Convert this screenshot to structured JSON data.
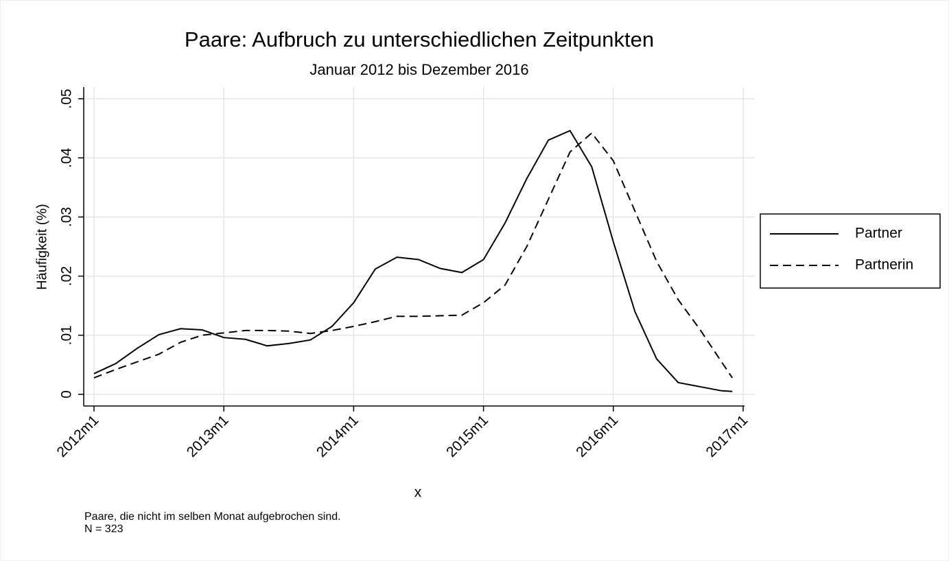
{
  "chart_data": {
    "type": "line",
    "title": "Paare: Aufbruch zu unterschiedlichen Zeitpunkten",
    "subtitle": "Januar 2012 bis Dezember 2016",
    "x_label": "x",
    "y_label": "Häufigkeit (%)",
    "notes": [
      "Paare, die nicht im selben Monat aufgebrochen sind.",
      "N = 323"
    ],
    "x": [
      624,
      626,
      628,
      630,
      632,
      634,
      636,
      638,
      640,
      642,
      644,
      646,
      648,
      650,
      652,
      654,
      656,
      658,
      660,
      662,
      664,
      666,
      668,
      670,
      672,
      674,
      676,
      678,
      680,
      682,
      683
    ],
    "series": [
      {
        "name": "Partner",
        "color": "#000000",
        "line_style": "solid",
        "values": [
          0.0035,
          0.0052,
          0.0078,
          0.0101,
          0.0111,
          0.0109,
          0.0096,
          0.0093,
          0.0082,
          0.0086,
          0.0092,
          0.0115,
          0.0155,
          0.0212,
          0.0232,
          0.0228,
          0.0213,
          0.0206,
          0.0228,
          0.029,
          0.0365,
          0.043,
          0.0446,
          0.0385,
          0.0258,
          0.014,
          0.006,
          0.002,
          0.0013,
          0.0006,
          0.0005
        ]
      },
      {
        "name": "Partnerin",
        "color": "#000000",
        "line_style": "dashed",
        "values": [
          0.0028,
          0.0042,
          0.0055,
          0.0068,
          0.0088,
          0.01,
          0.0104,
          0.0108,
          0.0108,
          0.0107,
          0.0103,
          0.0108,
          0.0115,
          0.0123,
          0.0132,
          0.0132,
          0.0133,
          0.0134,
          0.0155,
          0.0185,
          0.025,
          0.033,
          0.041,
          0.0442,
          0.0395,
          0.031,
          0.0225,
          0.016,
          0.011,
          0.0055,
          0.0028
        ]
      }
    ],
    "xlim": [
      624,
      684
    ],
    "xticks": [
      {
        "value": 624,
        "label": "2012m1"
      },
      {
        "value": 636,
        "label": "2013m1"
      },
      {
        "value": 648,
        "label": "2014m1"
      },
      {
        "value": 660,
        "label": "2015m1"
      },
      {
        "value": 672,
        "label": "2016m1"
      },
      {
        "value": 684,
        "label": "2017m1"
      }
    ],
    "ylim": [
      0,
      0.05
    ],
    "yticks": [
      0,
      {
        "value": 0.01,
        "label": ".01"
      },
      {
        "value": 0.02,
        "label": ".02"
      },
      {
        "value": 0.03,
        "label": ".03"
      },
      {
        "value": 0.04,
        "label": ".04"
      },
      {
        "value": 0.05,
        "label": ".05"
      }
    ],
    "grid": true,
    "legend": "right"
  }
}
